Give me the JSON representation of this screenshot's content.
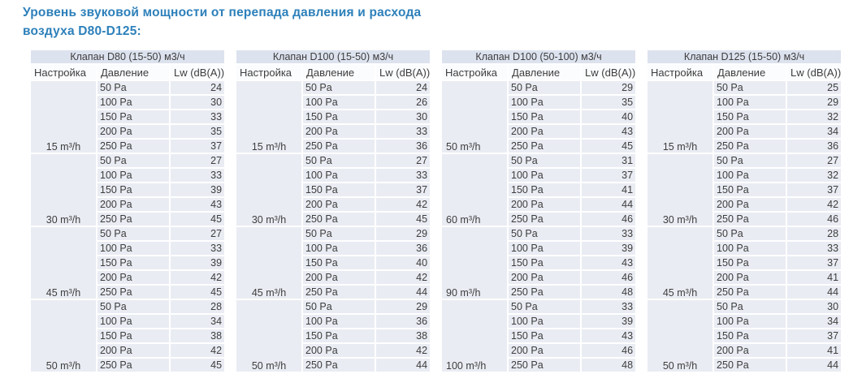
{
  "page_title": {
    "line1": "Уровень звуковой мощности от перепада давления и расхода",
    "line2": "воздуха D80-D125:"
  },
  "colors": {
    "title_blue": "#2d80ba",
    "table_title_bg": "#dce2ee",
    "header_bg": "#fbfcfe",
    "row_bg": "#e9ecf3",
    "cell_text": "#3d3d3d"
  },
  "columns": [
    "Настройка",
    "Давление",
    "Lw (dB(A))"
  ],
  "tables": [
    {
      "title": "Клапан D80 (15-50) м3/ч",
      "setting_align": "center",
      "groups": [
        {
          "setting": "15 m³/h",
          "rows": [
            [
              "50 Pa",
              "24"
            ],
            [
              "100 Pa",
              "30"
            ],
            [
              "150 Pa",
              "33"
            ],
            [
              "200 Pa",
              "35"
            ],
            [
              "250 Pa",
              "37"
            ]
          ]
        },
        {
          "setting": "30 m³/h",
          "rows": [
            [
              "50 Pa",
              "27"
            ],
            [
              "100 Pa",
              "33"
            ],
            [
              "150 Pa",
              "39"
            ],
            [
              "200 Pa",
              "43"
            ],
            [
              "250 Pa",
              "45"
            ]
          ]
        },
        {
          "setting": "45 m³/h",
          "rows": [
            [
              "50 Pa",
              "27"
            ],
            [
              "100 Pa",
              "33"
            ],
            [
              "150 Pa",
              "39"
            ],
            [
              "200 Pa",
              "42"
            ],
            [
              "250 Pa",
              "45"
            ]
          ]
        },
        {
          "setting": "50 m³/h",
          "rows": [
            [
              "50 Pa",
              "28"
            ],
            [
              "100 Pa",
              "34"
            ],
            [
              "150 Pa",
              "38"
            ],
            [
              "200 Pa",
              "42"
            ],
            [
              "250 Pa",
              "45"
            ]
          ]
        }
      ]
    },
    {
      "title": "Клапан D100 (15-50) м3/ч",
      "setting_align": "center",
      "groups": [
        {
          "setting": "15 m³/h",
          "rows": [
            [
              "50 Pa",
              "24"
            ],
            [
              "100 Pa",
              "26"
            ],
            [
              "150 Pa",
              "30"
            ],
            [
              "200 Pa",
              "33"
            ],
            [
              "250 Pa",
              "36"
            ]
          ]
        },
        {
          "setting": "30 m³/h",
          "rows": [
            [
              "50 Pa",
              "27"
            ],
            [
              "100 Pa",
              "33"
            ],
            [
              "150 Pa",
              "37"
            ],
            [
              "200 Pa",
              "42"
            ],
            [
              "250 Pa",
              "45"
            ]
          ]
        },
        {
          "setting": "45 m³/h",
          "rows": [
            [
              "50 Pa",
              "29"
            ],
            [
              "100 Pa",
              "36"
            ],
            [
              "150 Pa",
              "40"
            ],
            [
              "200 Pa",
              "42"
            ],
            [
              "250 Pa",
              "44"
            ]
          ]
        },
        {
          "setting": "50 m³/h",
          "rows": [
            [
              "50 Pa",
              "29"
            ],
            [
              "100 Pa",
              "36"
            ],
            [
              "150 Pa",
              "38"
            ],
            [
              "200 Pa",
              "42"
            ],
            [
              "250 Pa",
              "44"
            ]
          ]
        }
      ]
    },
    {
      "title": "Клапан D100 (50-100) м3/ч",
      "setting_align": "left",
      "groups": [
        {
          "setting": "50 m³/h",
          "rows": [
            [
              "50 Pa",
              "29"
            ],
            [
              "100 Pa",
              "35"
            ],
            [
              "150 Pa",
              "40"
            ],
            [
              "200 Pa",
              "43"
            ],
            [
              "250 Pa",
              "45"
            ]
          ]
        },
        {
          "setting": "60 m³/h",
          "rows": [
            [
              "50 Pa",
              "31"
            ],
            [
              "100 Pa",
              "37"
            ],
            [
              "150 Pa",
              "41"
            ],
            [
              "200 Pa",
              "44"
            ],
            [
              "250 Pa",
              "46"
            ]
          ]
        },
        {
          "setting": "90 m³/h",
          "rows": [
            [
              "50 Pa",
              "33"
            ],
            [
              "100 Pa",
              "39"
            ],
            [
              "150 Pa",
              "43"
            ],
            [
              "200 Pa",
              "46"
            ],
            [
              "250 Pa",
              "48"
            ]
          ]
        },
        {
          "setting": "100 m³/h",
          "rows": [
            [
              "50 Pa",
              "33"
            ],
            [
              "100 Pa",
              "39"
            ],
            [
              "150 Pa",
              "43"
            ],
            [
              "200 Pa",
              "46"
            ],
            [
              "250 Pa",
              "48"
            ]
          ]
        }
      ]
    },
    {
      "title": "Клапан D125 (15-50) м3/ч",
      "setting_align": "center",
      "groups": [
        {
          "setting": "15 m³/h",
          "rows": [
            [
              "50 Pa",
              "25"
            ],
            [
              "100 Pa",
              "29"
            ],
            [
              "150 Pa",
              "32"
            ],
            [
              "200 Pa",
              "34"
            ],
            [
              "250 Pa",
              "36"
            ]
          ]
        },
        {
          "setting": "30 m³/h",
          "rows": [
            [
              "50 Pa",
              "27"
            ],
            [
              "100 Pa",
              "32"
            ],
            [
              "150 Pa",
              "37"
            ],
            [
              "200 Pa",
              "42"
            ],
            [
              "250 Pa",
              "46"
            ]
          ]
        },
        {
          "setting": "45 m³/h",
          "rows": [
            [
              "50 Pa",
              "28"
            ],
            [
              "100 Pa",
              "33"
            ],
            [
              "150 Pa",
              "37"
            ],
            [
              "200 Pa",
              "41"
            ],
            [
              "250 Pa",
              "44"
            ]
          ]
        },
        {
          "setting": "50 m³/h",
          "rows": [
            [
              "50 Pa",
              "30"
            ],
            [
              "100 Pa",
              "34"
            ],
            [
              "150 Pa",
              "37"
            ],
            [
              "200 Pa",
              "41"
            ],
            [
              "250 Pa",
              "44"
            ]
          ]
        }
      ]
    }
  ]
}
